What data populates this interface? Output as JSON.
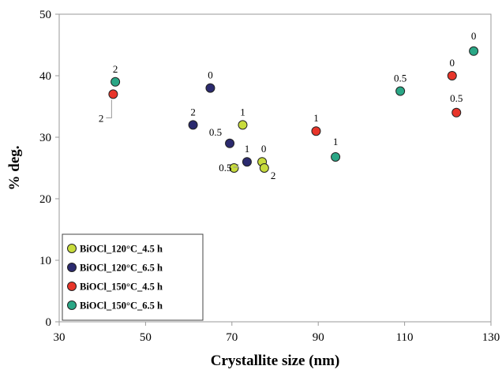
{
  "chart_data": {
    "type": "scatter",
    "title": "",
    "xlabel": "Crystallite size (nm)",
    "ylabel": "% deg.",
    "xlim": [
      30,
      130
    ],
    "ylim": [
      0,
      50
    ],
    "xticks": [
      30,
      50,
      70,
      90,
      110,
      130
    ],
    "yticks": [
      0,
      10,
      20,
      30,
      40,
      50
    ],
    "grid": false,
    "legend_position": "bottom-left",
    "series": [
      {
        "name": "BiOCl_120°C_4.5 h",
        "color": "#c8dc3c",
        "points": [
          {
            "x": 72.5,
            "y": 32,
            "label": "1"
          },
          {
            "x": 70.5,
            "y": 25,
            "label": "0.5"
          },
          {
            "x": 77.0,
            "y": 26,
            "label": "0"
          },
          {
            "x": 77.5,
            "y": 25,
            "label": "2"
          }
        ]
      },
      {
        "name": "BiOCl_120°C_6.5 h",
        "color": "#2b2a6e",
        "points": [
          {
            "x": 65.0,
            "y": 38,
            "label": "0"
          },
          {
            "x": 61.0,
            "y": 32,
            "label": "2"
          },
          {
            "x": 69.5,
            "y": 29,
            "label": "0.5"
          },
          {
            "x": 73.5,
            "y": 26,
            "label": "1"
          }
        ]
      },
      {
        "name": "BiOCl_150°C_4.5 h",
        "color": "#e8352a",
        "points": [
          {
            "x": 42.5,
            "y": 37,
            "label": "2"
          },
          {
            "x": 89.5,
            "y": 31,
            "label": "1"
          },
          {
            "x": 121.0,
            "y": 40,
            "label": "0"
          },
          {
            "x": 122.0,
            "y": 34,
            "label": "0.5"
          }
        ]
      },
      {
        "name": "BiOCl_150°C_6.5 h",
        "color": "#2aa786",
        "points": [
          {
            "x": 43.0,
            "y": 39,
            "label": "2"
          },
          {
            "x": 94.0,
            "y": 26.8,
            "label": "1"
          },
          {
            "x": 109.0,
            "y": 37.5,
            "label": "0.5"
          },
          {
            "x": 126.0,
            "y": 44,
            "label": "0"
          }
        ]
      }
    ]
  }
}
